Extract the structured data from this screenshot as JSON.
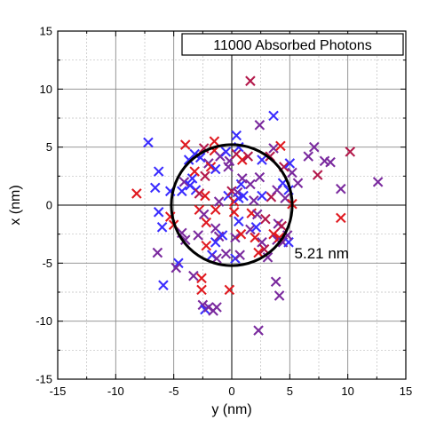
{
  "chart_data": {
    "type": "scatter",
    "title": "",
    "xlabel": "y (nm)",
    "ylabel": "x (nm)",
    "xlim": [
      -15,
      15
    ],
    "ylim": [
      -15,
      15
    ],
    "xticks": [
      -15,
      -10,
      -5,
      0,
      5,
      10,
      15
    ],
    "yticks": [
      -15,
      -10,
      -5,
      0,
      5,
      10,
      15
    ],
    "x_minor_step": 2.5,
    "y_minor_step": 2.5,
    "grid": true,
    "marker": "x",
    "legend": {
      "text": "11000 Absorbed Photons",
      "position": "top-right"
    },
    "circle": {
      "center": [
        0,
        0
      ],
      "radius": 5.21,
      "label": "5.21 nm",
      "color": "#000000"
    },
    "colors": {
      "blue": "#3a2cff",
      "purple": "#7a2a9e",
      "crimson": "#b3184a",
      "red": "#e0191f"
    },
    "points": [
      {
        "x": -7.2,
        "y": 5.4,
        "c": "blue"
      },
      {
        "x": -6.3,
        "y": 2.9,
        "c": "blue"
      },
      {
        "x": -6.6,
        "y": 1.5,
        "c": "blue"
      },
      {
        "x": -5.3,
        "y": 1.2,
        "c": "blue"
      },
      {
        "x": -6.3,
        "y": -0.6,
        "c": "blue"
      },
      {
        "x": -6.0,
        "y": -1.9,
        "c": "blue"
      },
      {
        "x": -6.4,
        "y": -4.1,
        "c": "purple"
      },
      {
        "x": -5.9,
        "y": -6.9,
        "c": "blue"
      },
      {
        "x": -4.6,
        "y": -5.0,
        "c": "blue"
      },
      {
        "x": -4.8,
        "y": -5.4,
        "c": "purple"
      },
      {
        "x": -5.3,
        "y": -1.0,
        "c": "red"
      },
      {
        "x": -5.0,
        "y": -1.7,
        "c": "red"
      },
      {
        "x": -4.3,
        "y": -2.4,
        "c": "purple"
      },
      {
        "x": -4.0,
        "y": -3.0,
        "c": "purple"
      },
      {
        "x": -8.2,
        "y": 1.0,
        "c": "red"
      },
      {
        "x": -4.1,
        "y": 2.0,
        "c": "purple"
      },
      {
        "x": -4.3,
        "y": 1.2,
        "c": "blue"
      },
      {
        "x": -3.6,
        "y": 1.7,
        "c": "blue"
      },
      {
        "x": -3.1,
        "y": 1.3,
        "c": "blue"
      },
      {
        "x": -3.4,
        "y": 2.3,
        "c": "blue"
      },
      {
        "x": -3.7,
        "y": 3.9,
        "c": "blue"
      },
      {
        "x": -3.2,
        "y": 4.4,
        "c": "blue"
      },
      {
        "x": -3.2,
        "y": 2.9,
        "c": "red"
      },
      {
        "x": -2.7,
        "y": 4.1,
        "c": "blue"
      },
      {
        "x": -2.4,
        "y": 4.9,
        "c": "crimson"
      },
      {
        "x": -2.0,
        "y": 3.6,
        "c": "purple"
      },
      {
        "x": -1.8,
        "y": 3.3,
        "c": "red"
      },
      {
        "x": -2.3,
        "y": 2.5,
        "c": "crimson"
      },
      {
        "x": -1.5,
        "y": 4.7,
        "c": "red"
      },
      {
        "x": -1.5,
        "y": 5.5,
        "c": "red"
      },
      {
        "x": -1.4,
        "y": 3.1,
        "c": "blue"
      },
      {
        "x": -1.0,
        "y": 4.2,
        "c": "purple"
      },
      {
        "x": -0.5,
        "y": 4.6,
        "c": "blue"
      },
      {
        "x": -0.3,
        "y": 3.3,
        "c": "purple"
      },
      {
        "x": -4.0,
        "y": 5.2,
        "c": "red"
      },
      {
        "x": -2.8,
        "y": 1.0,
        "c": "crimson"
      },
      {
        "x": -2.3,
        "y": 0.8,
        "c": "red"
      },
      {
        "x": -2.8,
        "y": -0.4,
        "c": "red"
      },
      {
        "x": -2.4,
        "y": -0.8,
        "c": "purple"
      },
      {
        "x": -2.2,
        "y": -1.5,
        "c": "red"
      },
      {
        "x": -1.4,
        "y": -0.4,
        "c": "red"
      },
      {
        "x": -1.1,
        "y": 0.3,
        "c": "purple"
      },
      {
        "x": -1.4,
        "y": -2.0,
        "c": "purple"
      },
      {
        "x": -1.1,
        "y": -2.7,
        "c": "purple"
      },
      {
        "x": -1.4,
        "y": -3.2,
        "c": "blue"
      },
      {
        "x": -0.8,
        "y": -2.6,
        "c": "blue"
      },
      {
        "x": -2.9,
        "y": -2.6,
        "c": "purple"
      },
      {
        "x": -2.2,
        "y": -3.5,
        "c": "red"
      },
      {
        "x": -1.7,
        "y": -4.3,
        "c": "blue"
      },
      {
        "x": -1.3,
        "y": -4.6,
        "c": "purple"
      },
      {
        "x": -3.3,
        "y": -6.1,
        "c": "purple"
      },
      {
        "x": -2.6,
        "y": -6.3,
        "c": "red"
      },
      {
        "x": -2.6,
        "y": -7.3,
        "c": "red"
      },
      {
        "x": -2.5,
        "y": -8.6,
        "c": "purple"
      },
      {
        "x": -2.3,
        "y": -9.0,
        "c": "blue"
      },
      {
        "x": -2.0,
        "y": -8.8,
        "c": "purple"
      },
      {
        "x": -1.6,
        "y": -9.1,
        "c": "purple"
      },
      {
        "x": -1.3,
        "y": -8.8,
        "c": "purple"
      },
      {
        "x": -0.2,
        "y": -7.3,
        "c": "red"
      },
      {
        "x": -0.5,
        "y": -4.2,
        "c": "purple"
      },
      {
        "x": -0.3,
        "y": 0.8,
        "c": "blue"
      },
      {
        "x": 0.0,
        "y": 1.2,
        "c": "crimson"
      },
      {
        "x": 0.2,
        "y": 0.3,
        "c": "red"
      },
      {
        "x": 0.5,
        "y": 1.1,
        "c": "purple"
      },
      {
        "x": 0.6,
        "y": 0.6,
        "c": "blue"
      },
      {
        "x": 0.8,
        "y": 1.8,
        "c": "blue"
      },
      {
        "x": 0.9,
        "y": 2.3,
        "c": "purple"
      },
      {
        "x": 1.0,
        "y": 0.8,
        "c": "blue"
      },
      {
        "x": -0.2,
        "y": 3.8,
        "c": "purple"
      },
      {
        "x": 0.4,
        "y": 4.4,
        "c": "crimson"
      },
      {
        "x": 0.6,
        "y": 5.0,
        "c": "blue"
      },
      {
        "x": 0.9,
        "y": 3.9,
        "c": "red"
      },
      {
        "x": 0.4,
        "y": 6.0,
        "c": "blue"
      },
      {
        "x": 0.2,
        "y": -0.6,
        "c": "red"
      },
      {
        "x": 0.6,
        "y": -1.4,
        "c": "blue"
      },
      {
        "x": 0.3,
        "y": -2.8,
        "c": "purple"
      },
      {
        "x": 0.8,
        "y": -2.5,
        "c": "red"
      },
      {
        "x": 0.3,
        "y": -4.6,
        "c": "blue"
      },
      {
        "x": 0.7,
        "y": -4.3,
        "c": "purple"
      },
      {
        "x": 1.6,
        "y": 10.7,
        "c": "crimson"
      },
      {
        "x": 1.4,
        "y": 4.2,
        "c": "crimson"
      },
      {
        "x": 2.4,
        "y": 2.4,
        "c": "purple"
      },
      {
        "x": 2.6,
        "y": 3.9,
        "c": "blue"
      },
      {
        "x": 3.3,
        "y": 4.2,
        "c": "crimson"
      },
      {
        "x": 3.6,
        "y": 4.9,
        "c": "purple"
      },
      {
        "x": 4.2,
        "y": 5.1,
        "c": "red"
      },
      {
        "x": 3.6,
        "y": 7.7,
        "c": "blue"
      },
      {
        "x": 2.4,
        "y": 6.9,
        "c": "purple"
      },
      {
        "x": 1.6,
        "y": 1.8,
        "c": "purple"
      },
      {
        "x": 1.9,
        "y": 0.4,
        "c": "purple"
      },
      {
        "x": 1.7,
        "y": -0.7,
        "c": "red"
      },
      {
        "x": 2.2,
        "y": -0.8,
        "c": "purple"
      },
      {
        "x": 2.6,
        "y": 0.8,
        "c": "blue"
      },
      {
        "x": 2.9,
        "y": -1.2,
        "c": "crimson"
      },
      {
        "x": 1.6,
        "y": -2.1,
        "c": "purple"
      },
      {
        "x": 2.1,
        "y": -1.9,
        "c": "blue"
      },
      {
        "x": 2.0,
        "y": -2.8,
        "c": "red"
      },
      {
        "x": 2.6,
        "y": -3.2,
        "c": "purple"
      },
      {
        "x": 2.8,
        "y": -3.8,
        "c": "crimson"
      },
      {
        "x": 3.1,
        "y": -4.5,
        "c": "purple"
      },
      {
        "x": 3.6,
        "y": -2.5,
        "c": "red"
      },
      {
        "x": 3.9,
        "y": -3.0,
        "c": "purple"
      },
      {
        "x": 4.1,
        "y": -2.8,
        "c": "red"
      },
      {
        "x": 4.4,
        "y": -3.2,
        "c": "purple"
      },
      {
        "x": 4.0,
        "y": -1.6,
        "c": "purple"
      },
      {
        "x": 3.4,
        "y": 0.7,
        "c": "crimson"
      },
      {
        "x": 3.9,
        "y": 1.3,
        "c": "purple"
      },
      {
        "x": 4.4,
        "y": 1.9,
        "c": "blue"
      },
      {
        "x": 4.6,
        "y": 0.6,
        "c": "purple"
      },
      {
        "x": 4.9,
        "y": 1.3,
        "c": "blue"
      },
      {
        "x": 4.5,
        "y": 3.3,
        "c": "crimson"
      },
      {
        "x": 5.2,
        "y": 2.8,
        "c": "purple"
      },
      {
        "x": 5.0,
        "y": 3.6,
        "c": "blue"
      },
      {
        "x": 5.2,
        "y": 0.1,
        "c": "red"
      },
      {
        "x": 4.9,
        "y": -3.2,
        "c": "blue"
      },
      {
        "x": 4.3,
        "y": -1.8,
        "c": "crimson"
      },
      {
        "x": 4.8,
        "y": -2.6,
        "c": "purple"
      },
      {
        "x": 5.7,
        "y": 1.9,
        "c": "purple"
      },
      {
        "x": 6.6,
        "y": 4.2,
        "c": "purple"
      },
      {
        "x": 7.1,
        "y": 5.0,
        "c": "purple"
      },
      {
        "x": 7.4,
        "y": 2.6,
        "c": "crimson"
      },
      {
        "x": 8.0,
        "y": 3.8,
        "c": "purple"
      },
      {
        "x": 8.5,
        "y": 3.7,
        "c": "purple"
      },
      {
        "x": 9.4,
        "y": 1.4,
        "c": "purple"
      },
      {
        "x": 9.4,
        "y": -1.1,
        "c": "red"
      },
      {
        "x": 10.2,
        "y": 4.6,
        "c": "crimson"
      },
      {
        "x": 12.6,
        "y": 2.0,
        "c": "purple"
      },
      {
        "x": 3.8,
        "y": -6.6,
        "c": "purple"
      },
      {
        "x": 4.1,
        "y": -7.8,
        "c": "purple"
      },
      {
        "x": 2.3,
        "y": -10.8,
        "c": "purple"
      },
      {
        "x": 2.3,
        "y": -4.1,
        "c": "red"
      }
    ]
  }
}
